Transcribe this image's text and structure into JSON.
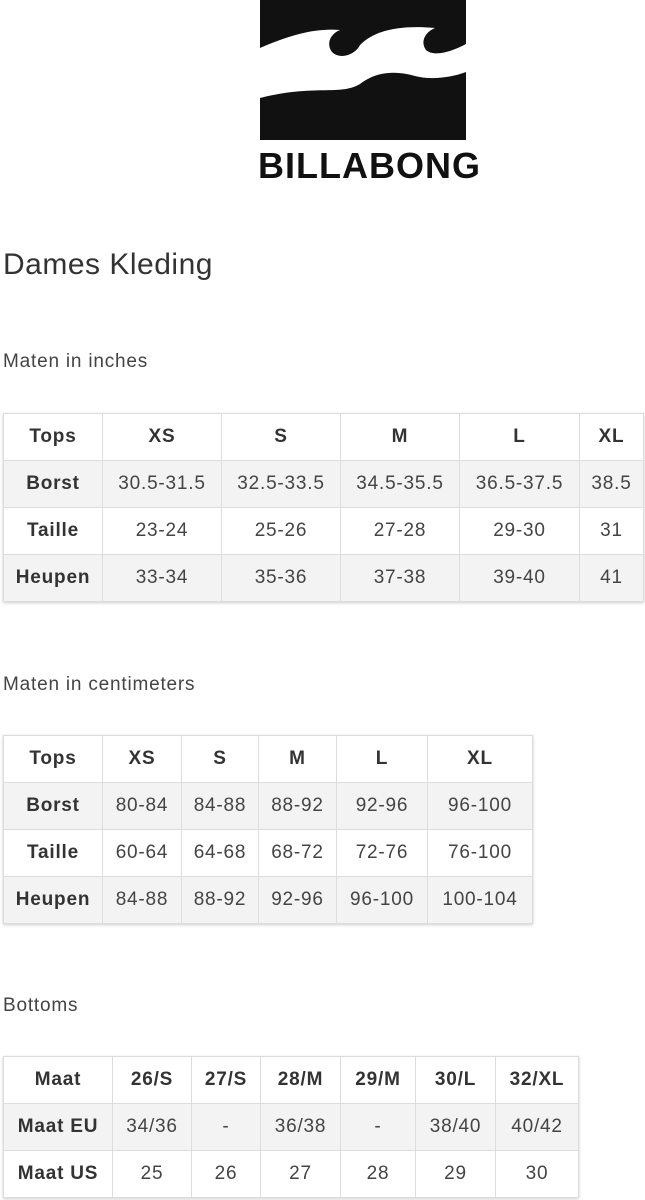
{
  "brand": {
    "name": "BILLABONG"
  },
  "title": "Dames Kleding",
  "sections": [
    {
      "label": "Maten in inches",
      "header": [
        "Tops",
        "XS",
        "S",
        "M",
        "L",
        "XL"
      ],
      "rows": [
        [
          "Borst",
          "30.5-31.5",
          "32.5-33.5",
          "34.5-35.5",
          "36.5-37.5",
          "38.5"
        ],
        [
          "Taille",
          "23-24",
          "25-26",
          "27-28",
          "29-30",
          "31"
        ],
        [
          "Heupen",
          "33-34",
          "35-36",
          "37-38",
          "39-40",
          "41"
        ]
      ]
    },
    {
      "label": "Maten in centimeters",
      "header": [
        "Tops",
        "XS",
        "S",
        "M",
        "L",
        "XL"
      ],
      "rows": [
        [
          "Borst",
          "80-84",
          "84-88",
          "88-92",
          "92-96",
          "96-100"
        ],
        [
          "Taille",
          "60-64",
          "64-68",
          "68-72",
          "72-76",
          "76-100"
        ],
        [
          "Heupen",
          "84-88",
          "88-92",
          "92-96",
          "96-100",
          "100-104"
        ]
      ]
    },
    {
      "label": "Bottoms",
      "header": [
        "Maat",
        "26/S",
        "27/S",
        "28/M",
        "29/M",
        "30/L",
        "32/XL"
      ],
      "rows": [
        [
          "Maat EU",
          "34/36",
          "-",
          "36/38",
          "-",
          "38/40",
          "40/42"
        ],
        [
          "Maat US",
          "25",
          "26",
          "27",
          "28",
          "29",
          "30"
        ]
      ]
    }
  ]
}
